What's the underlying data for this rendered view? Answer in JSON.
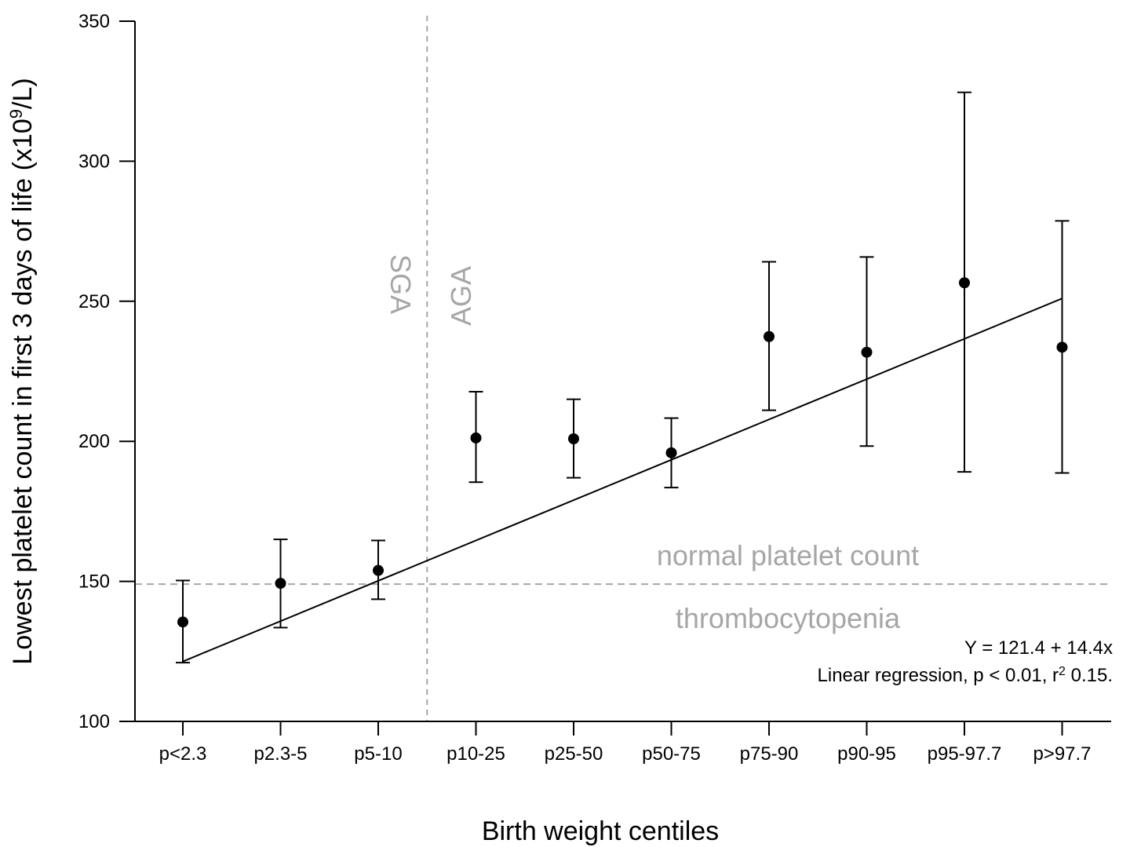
{
  "chart_data": {
    "type": "scatter",
    "xlabel": "Birth weight centiles",
    "ylabel": "Lowest platelet count in first 3 days of life (x10⁹/L)",
    "ylabel_parts": {
      "pre": "Lowest platelet count in first 3 days of life (x10",
      "sup": "9",
      "post": "/L)"
    },
    "ylim": [
      100,
      350
    ],
    "yticks": [
      100,
      150,
      200,
      250,
      300,
      350
    ],
    "categories": [
      "p<2.3",
      "p2.3-5",
      "p5-10",
      "p10-25",
      "p25-50",
      "p50-75",
      "p75-90",
      "p90-95",
      "p95-97.7",
      "p>97.7"
    ],
    "series": [
      {
        "values": [
          135.5,
          149.3,
          153.9,
          201.2,
          200.9,
          195.9,
          237.4,
          231.8,
          256.6,
          233.6
        ],
        "error_low": [
          121.0,
          133.5,
          143.6,
          185.4,
          187.0,
          183.5,
          211.1,
          198.3,
          189.1,
          188.7
        ],
        "error_high": [
          150.3,
          165.0,
          164.6,
          217.7,
          215.0,
          208.3,
          264.1,
          265.8,
          324.6,
          278.7
        ]
      }
    ],
    "regression": {
      "intercept": 121.4,
      "slope": 14.4,
      "x_start": 0,
      "x_end": 9
    },
    "reference_line": {
      "y": 149,
      "style": "dashed"
    },
    "divider_after_index": 2,
    "region_labels": {
      "left": "SGA",
      "right": "AGA",
      "above": "normal platelet count",
      "below": "thrombocytopenia"
    },
    "annotations": {
      "equation": "Y = 121.4 + 14.4x",
      "stats_pre": "Linear regression, p < 0.01, r",
      "stats_sup": "2",
      "stats_post": " 0.15."
    },
    "grid": false,
    "legend": "none",
    "colors": {
      "points": "#000000",
      "reference": "#a6a6a6",
      "region_text": "#a6a6a6"
    }
  }
}
